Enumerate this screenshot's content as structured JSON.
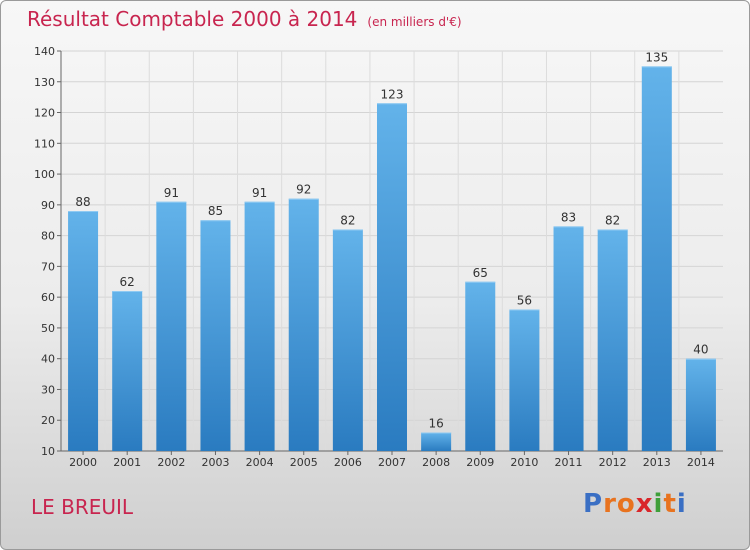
{
  "header": {
    "title": "Résultat Comptable 2000 à 2014",
    "unit": "(en milliers d'€)"
  },
  "footer": {
    "commune": "LE BREUIL",
    "logo": "Proxiti"
  },
  "colors": {
    "title": "#c8254f",
    "bar_top": "#63b3ea",
    "bar_bottom": "#2a7bc0",
    "logo_letters": [
      "#3a6fc4",
      "#e8731f",
      "#e8731f",
      "#d9262a",
      "#3f9f3a",
      "#e8731f",
      "#3a6fc4"
    ]
  },
  "chart_data": {
    "type": "bar",
    "title": "Résultat Comptable 2000 à 2014",
    "subtitle": "(en milliers d'€)",
    "categories": [
      "2000",
      "2001",
      "2002",
      "2003",
      "2004",
      "2005",
      "2006",
      "2007",
      "2008",
      "2009",
      "2010",
      "2011",
      "2012",
      "2013",
      "2014"
    ],
    "values": [
      88,
      62,
      91,
      85,
      91,
      92,
      82,
      123,
      16,
      65,
      56,
      83,
      82,
      135,
      40
    ],
    "ylim": [
      10,
      140
    ],
    "yticks": [
      10,
      20,
      30,
      40,
      50,
      60,
      70,
      80,
      90,
      100,
      110,
      120,
      130,
      140
    ],
    "grid": true,
    "data_labels": true
  }
}
